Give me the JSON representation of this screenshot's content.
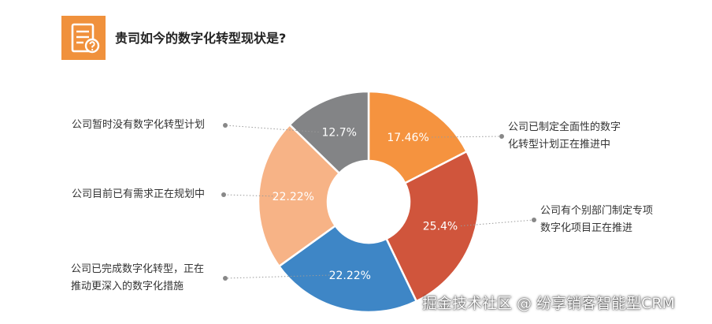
{
  "header": {
    "title": "贵司如今的数字化转型现状是?",
    "icon": "document-question-icon",
    "icon_color": "#f0913c"
  },
  "chart_data": {
    "type": "pie",
    "donut": true,
    "legend": "none",
    "series": [
      {
        "values": [
          17.46,
          25.4,
          22.22,
          22.22,
          12.7
        ],
        "labels": [
          "17.46%",
          "25.4%",
          "22.22%",
          "22.22%",
          "12.7%"
        ],
        "categories": [
          [
            "公司已制定全面性的数字",
            "化转型计划正在推进中"
          ],
          [
            "公司有个别部门制定专项",
            "数字化项目正在推进"
          ],
          [
            "公司已完成数字化转型，正在",
            "推动更深入的数字化措施"
          ],
          [
            "公司目前已有需求正在规划中"
          ],
          [
            "公司暂时没有数字化转型计划"
          ]
        ],
        "colors": [
          "#f5933f",
          "#d0553c",
          "#3e86c6",
          "#f7b386",
          "#838486"
        ]
      }
    ]
  },
  "watermark": "掘金技术社区 @ 纷享销客智能型CRM"
}
